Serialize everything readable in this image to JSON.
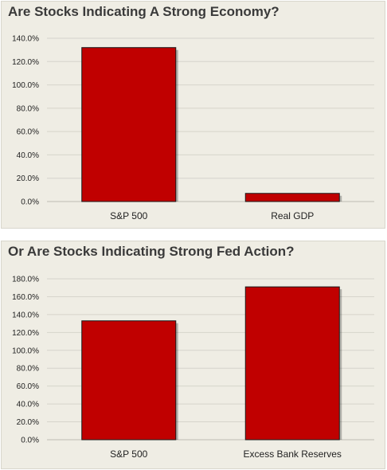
{
  "chart_data": [
    {
      "type": "bar",
      "title": "Are Stocks Indicating A Strong Economy?",
      "categories": [
        "S&P 500",
        "Real GDP"
      ],
      "values": [
        132.0,
        7.0
      ],
      "ylim": [
        0,
        140
      ],
      "yticks": [
        "0.0%",
        "20.0%",
        "40.0%",
        "60.0%",
        "80.0%",
        "100.0%",
        "120.0%",
        "140.0%"
      ],
      "ytick_values": [
        0,
        20,
        40,
        60,
        80,
        100,
        120,
        140
      ],
      "grid": true,
      "bar_color": "#c00000"
    },
    {
      "type": "bar",
      "title": "Or Are Stocks Indicating Strong Fed Action?",
      "categories": [
        "S&P 500",
        "Excess Bank Reserves"
      ],
      "values": [
        133.0,
        171.0
      ],
      "ylim": [
        0,
        180
      ],
      "yticks": [
        "0.0%",
        "20.0%",
        "40.0%",
        "60.0%",
        "80.0%",
        "100.0%",
        "120.0%",
        "140.0%",
        "160.0%",
        "180.0%"
      ],
      "ytick_values": [
        0,
        20,
        40,
        60,
        80,
        100,
        120,
        140,
        160,
        180
      ],
      "grid": true,
      "bar_color": "#c00000"
    }
  ]
}
